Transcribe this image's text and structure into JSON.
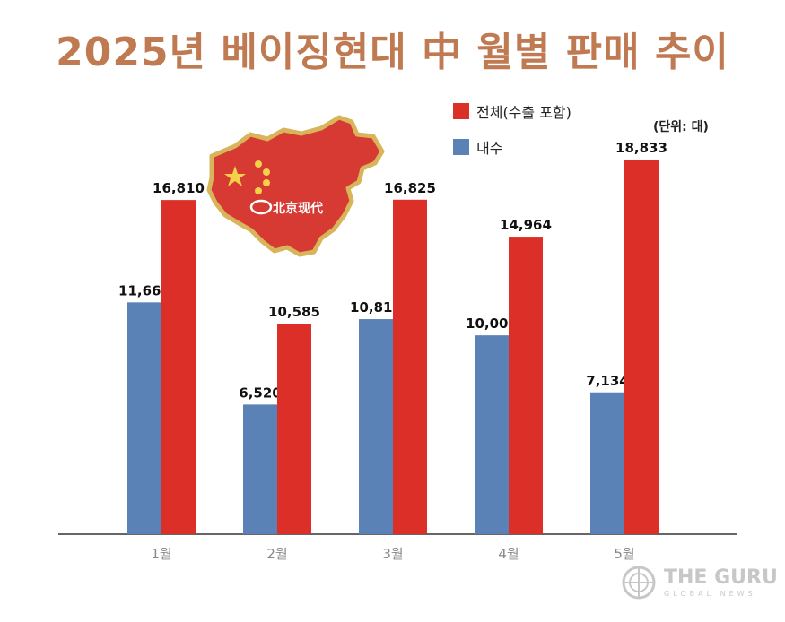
{
  "title": "2025년 베이징현대 中 월별 판매 추이",
  "unit_label": "(단위: 대)",
  "legend": {
    "total": "전체(수출 포함)",
    "domestic": "내수"
  },
  "logo_text": "北京现代",
  "watermark": {
    "main": "THE GURU",
    "sub": "GLOBAL NEWS"
  },
  "colors": {
    "title": "#c07a52",
    "domestic": "#5a82b6",
    "total": "#dc2f27",
    "map": "#d63a33",
    "map_border": "#d8b45a"
  },
  "chart_data": {
    "type": "bar",
    "categories": [
      "1월",
      "2월",
      "3월",
      "4월",
      "5월"
    ],
    "series": [
      {
        "name": "내수",
        "values": [
          11662,
          6520,
          10817,
          10001,
          7134
        ],
        "labels": [
          "11,662",
          "6,520",
          "10,817",
          "10,001",
          "7,134"
        ]
      },
      {
        "name": "전체(수출 포함)",
        "values": [
          16810,
          10585,
          16825,
          14964,
          18833
        ],
        "labels": [
          "16,810",
          "10,585",
          "16,825",
          "14,964",
          "18,833"
        ]
      }
    ],
    "ylim": [
      0,
      22000
    ],
    "xlabel": "",
    "ylabel": "",
    "grid": false,
    "legend_position": "top-right"
  }
}
